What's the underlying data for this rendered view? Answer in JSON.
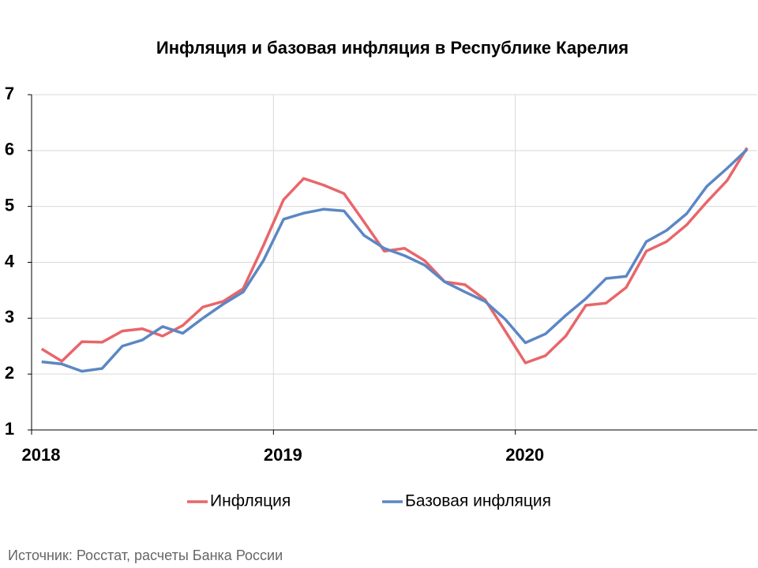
{
  "chart_data": {
    "type": "line",
    "title": "Инфляция и базовая инфляция в Республике Карелия",
    "source": "Источник: Росстат, расчеты Банка России",
    "categories": [
      "2018",
      null,
      null,
      null,
      null,
      null,
      null,
      null,
      null,
      null,
      null,
      null,
      "2019",
      null,
      null,
      null,
      null,
      null,
      null,
      null,
      null,
      null,
      null,
      null,
      "2020",
      null,
      null,
      null,
      null,
      null,
      null,
      null,
      null,
      null,
      null,
      null
    ],
    "series": [
      {
        "name": "Инфляция",
        "color": "#e8666a",
        "values": [
          2.45,
          2.23,
          2.58,
          2.57,
          2.77,
          2.81,
          2.68,
          2.87,
          3.2,
          3.3,
          3.53,
          4.3,
          5.12,
          5.5,
          5.38,
          5.23,
          4.72,
          4.2,
          4.25,
          4.03,
          3.65,
          3.6,
          3.33,
          2.77,
          2.2,
          2.33,
          2.68,
          3.23,
          3.27,
          3.55,
          4.2,
          4.37,
          4.67,
          5.08,
          5.46,
          6.05
        ]
      },
      {
        "name": "Базовая инфляция",
        "color": "#5b87c4",
        "values": [
          2.22,
          2.18,
          2.05,
          2.1,
          2.5,
          2.61,
          2.85,
          2.73,
          3.0,
          3.25,
          3.47,
          4.03,
          4.77,
          4.88,
          4.95,
          4.92,
          4.48,
          4.25,
          4.12,
          3.95,
          3.65,
          3.47,
          3.3,
          2.98,
          2.56,
          2.72,
          3.05,
          3.35,
          3.71,
          3.75,
          4.37,
          4.57,
          4.87,
          5.36,
          5.68,
          6.02
        ]
      }
    ],
    "ylim": [
      1,
      7
    ],
    "yticks": [
      1,
      2,
      3,
      4,
      5,
      6,
      7
    ],
    "grid": true,
    "legend": "bottom"
  }
}
